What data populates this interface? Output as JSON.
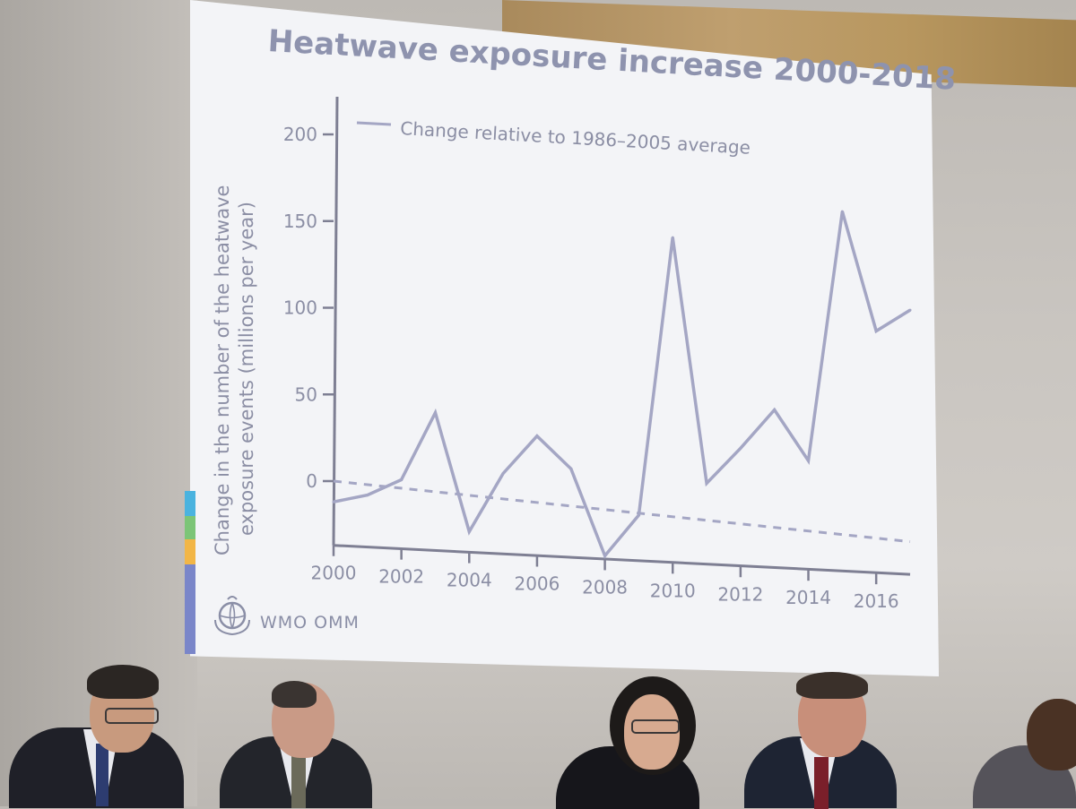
{
  "slide": {
    "title": "Heatwave exposure increase 2000-2018",
    "logo_text": "WMO OMM"
  },
  "chart_data": {
    "type": "line",
    "ylabel_line1": "Change in the number of the heatwave",
    "ylabel_line2": "exposure events (millions per year)",
    "y_ticks": [
      0,
      50,
      100,
      150,
      200
    ],
    "x_ticks": [
      2000,
      2002,
      2004,
      2006,
      2008,
      2010,
      2012,
      2014,
      2016
    ],
    "xlim": [
      2000,
      2017
    ],
    "ylim": [
      -35,
      220
    ],
    "grid": false,
    "legend_position": "top-left",
    "x": [
      2000,
      2001,
      2002,
      2003,
      2004,
      2005,
      2006,
      2007,
      2008,
      2009,
      2010,
      2011,
      2012,
      2013,
      2014,
      2015,
      2016,
      2017
    ],
    "series": [
      {
        "name": "Change relative to 1986–2005 average",
        "values": [
          -12,
          -7,
          3,
          43,
          -25,
          10,
          33,
          15,
          -35,
          -10,
          155,
          11,
          33,
          57,
          28,
          178,
          108,
          122
        ]
      }
    ],
    "trend": {
      "start": 0,
      "end": -17
    },
    "colors": {
      "line": "#a4a6c4",
      "axis": "#7e7f93",
      "text": "#8b8ea4",
      "title": "#8e93ae"
    }
  }
}
